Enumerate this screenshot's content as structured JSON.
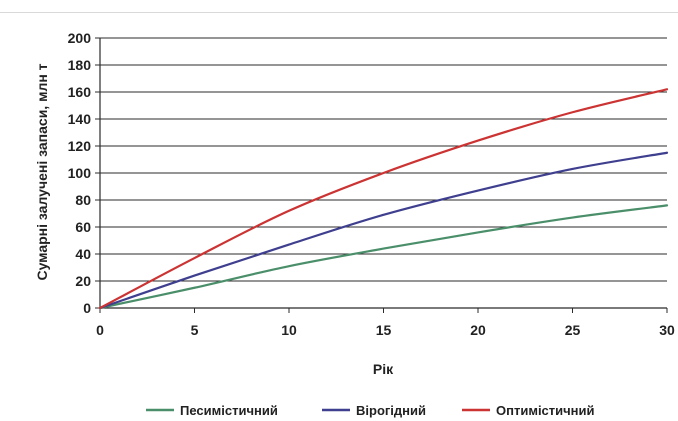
{
  "chart_data": {
    "type": "line",
    "title": "",
    "xlabel": "Рік",
    "ylabel": "Сумарні залучені запаси, млн т",
    "xlim": [
      0,
      30
    ],
    "ylim": [
      0,
      200
    ],
    "x_ticks": [
      "0",
      "5",
      "10",
      "15",
      "20",
      "25",
      "30"
    ],
    "y_ticks": [
      "0",
      "20",
      "40",
      "60",
      "80",
      "100",
      "120",
      "140",
      "160",
      "180",
      "200"
    ],
    "grid": true,
    "legend_position": "bottom",
    "x": [
      0,
      5,
      10,
      15,
      20,
      25,
      30
    ],
    "series": [
      {
        "name": "Песимістичний",
        "color": "#4a8f6a",
        "values": [
          0,
          15,
          31,
          44,
          56,
          67,
          76
        ]
      },
      {
        "name": "Вірогідний",
        "color": "#3f3f8f",
        "values": [
          0,
          24,
          47,
          69,
          87,
          103,
          115
        ]
      },
      {
        "name": "Оптимістичний",
        "color": "#cc3333",
        "values": [
          0,
          37,
          72,
          100,
          124,
          145,
          162
        ]
      }
    ]
  }
}
